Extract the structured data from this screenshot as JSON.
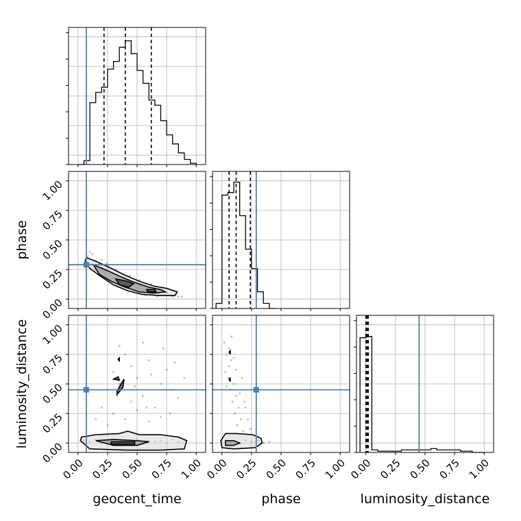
{
  "chart_data": {
    "type": "corner",
    "parameters": [
      "geocent_time",
      "phase",
      "luminosity_distance"
    ],
    "tick_values": [
      0.0,
      0.25,
      0.5,
      0.75,
      1.0
    ],
    "tick_labels": [
      "0.00",
      "0.25",
      "0.50",
      "0.75",
      "1.00"
    ],
    "axis_range": [
      -0.08,
      1.08
    ],
    "grid": true,
    "truths": {
      "geocent_time": 0.07,
      "phase": 0.29,
      "luminosity_distance": 0.45
    },
    "colors": {
      "truth": "#4682b4",
      "hist": "#000000",
      "grid": "#b0b0b0",
      "points": "#000000"
    },
    "marginals": [
      {
        "parameter": "geocent_time",
        "quantiles": [
          0.22,
          0.4,
          0.62
        ],
        "bin_edges": [
          0.0,
          0.05,
          0.1,
          0.15,
          0.2,
          0.25,
          0.3,
          0.35,
          0.4,
          0.45,
          0.5,
          0.55,
          0.6,
          0.65,
          0.7,
          0.75,
          0.8,
          0.85,
          0.9,
          0.95,
          1.0
        ],
        "counts": [
          0.0,
          0.03,
          0.48,
          0.56,
          0.6,
          0.74,
          0.8,
          0.91,
          0.96,
          0.86,
          0.73,
          0.63,
          0.5,
          0.46,
          0.34,
          0.23,
          0.16,
          0.09,
          0.04,
          0.01
        ]
      },
      {
        "parameter": "phase",
        "quantiles": [
          0.06,
          0.12,
          0.24
        ],
        "bin_edges": [
          -0.05,
          0.0,
          0.05,
          0.1,
          0.15,
          0.2,
          0.25,
          0.3,
          0.35,
          0.4,
          0.45
        ],
        "counts": [
          0.04,
          0.88,
          0.9,
          0.98,
          0.72,
          0.46,
          0.31,
          0.13,
          0.04,
          0.0
        ]
      },
      {
        "parameter": "luminosity_distance",
        "quantiles": [
          0.0,
          0.01,
          0.02
        ],
        "bin_edges": [
          -0.05,
          0.0,
          0.05,
          0.1,
          0.15,
          0.2,
          0.25,
          0.3,
          0.35,
          0.4,
          0.45,
          0.5,
          0.55,
          0.6,
          0.65,
          0.7,
          0.75,
          0.8,
          0.85,
          0.9,
          0.95,
          1.0
        ],
        "counts": [
          0.89,
          0.9,
          0.02,
          0.01,
          0.01,
          0.01,
          0.01,
          0.02,
          0.02,
          0.02,
          0.02,
          0.02,
          0.03,
          0.02,
          0.02,
          0.02,
          0.02,
          0.01,
          0.01,
          0.0,
          0.0
        ]
      }
    ],
    "scatter_samples": [
      {
        "x": "geocent_time",
        "y": "phase",
        "points": [
          [
            0.06,
            0.34
          ],
          [
            0.08,
            0.36
          ],
          [
            0.1,
            0.3
          ],
          [
            0.12,
            0.38
          ],
          [
            0.15,
            0.32
          ],
          [
            0.18,
            0.3
          ],
          [
            0.2,
            0.27
          ],
          [
            0.22,
            0.24
          ],
          [
            0.25,
            0.26
          ],
          [
            0.28,
            0.22
          ],
          [
            0.3,
            0.18
          ],
          [
            0.33,
            0.2
          ],
          [
            0.35,
            0.16
          ],
          [
            0.38,
            0.18
          ],
          [
            0.4,
            0.14
          ],
          [
            0.42,
            0.12
          ],
          [
            0.45,
            0.15
          ],
          [
            0.48,
            0.11
          ],
          [
            0.5,
            0.09
          ],
          [
            0.53,
            0.12
          ],
          [
            0.55,
            0.08
          ],
          [
            0.58,
            0.07
          ],
          [
            0.6,
            0.09
          ],
          [
            0.63,
            0.05
          ],
          [
            0.65,
            0.06
          ],
          [
            0.68,
            0.04
          ],
          [
            0.7,
            0.07
          ],
          [
            0.73,
            0.03
          ],
          [
            0.75,
            0.05
          ],
          [
            0.78,
            0.03
          ],
          [
            0.8,
            0.02
          ],
          [
            0.83,
            0.04
          ],
          [
            0.85,
            0.02
          ],
          [
            0.88,
            0.02
          ],
          [
            0.1,
            0.4
          ],
          [
            0.14,
            0.25
          ],
          [
            0.24,
            0.3
          ],
          [
            0.32,
            0.25
          ],
          [
            0.44,
            0.2
          ],
          [
            0.52,
            0.16
          ],
          [
            0.62,
            0.13
          ],
          [
            0.72,
            0.1
          ],
          [
            0.2,
            0.33
          ],
          [
            0.27,
            0.15
          ],
          [
            0.36,
            0.1
          ],
          [
            0.47,
            0.06
          ],
          [
            0.57,
            0.03
          ],
          [
            0.67,
            0.02
          ]
        ]
      },
      {
        "x": "geocent_time",
        "y": "luminosity_distance",
        "points": [
          [
            0.05,
            0.02
          ],
          [
            0.1,
            0.01
          ],
          [
            0.15,
            0.03
          ],
          [
            0.2,
            0.0
          ],
          [
            0.25,
            0.02
          ],
          [
            0.3,
            0.01
          ],
          [
            0.35,
            0.0
          ],
          [
            0.4,
            0.02
          ],
          [
            0.45,
            0.01
          ],
          [
            0.5,
            0.03
          ],
          [
            0.55,
            0.0
          ],
          [
            0.6,
            0.02
          ],
          [
            0.65,
            0.01
          ],
          [
            0.7,
            0.02
          ],
          [
            0.75,
            0.0
          ],
          [
            0.8,
            0.03
          ],
          [
            0.85,
            0.01
          ],
          [
            0.9,
            0.02
          ],
          [
            0.2,
            0.3
          ],
          [
            0.25,
            0.45
          ],
          [
            0.3,
            0.6
          ],
          [
            0.35,
            0.5
          ],
          [
            0.4,
            0.75
          ],
          [
            0.45,
            0.35
          ],
          [
            0.5,
            0.55
          ],
          [
            0.55,
            0.4
          ],
          [
            0.6,
            0.7
          ],
          [
            0.65,
            0.3
          ],
          [
            0.7,
            0.5
          ],
          [
            0.75,
            0.62
          ],
          [
            0.8,
            0.45
          ],
          [
            0.85,
            0.38
          ],
          [
            0.3,
            0.25
          ],
          [
            0.35,
            0.82
          ],
          [
            0.45,
            0.65
          ],
          [
            0.55,
            0.85
          ],
          [
            0.62,
            0.58
          ],
          [
            0.72,
            0.8
          ],
          [
            0.82,
            0.68
          ],
          [
            0.9,
            0.55
          ],
          [
            0.25,
            0.15
          ],
          [
            0.4,
            0.2
          ],
          [
            0.5,
            0.28
          ],
          [
            0.6,
            0.18
          ],
          [
            0.7,
            0.22
          ],
          [
            0.15,
            0.2
          ],
          [
            0.33,
            0.4
          ],
          [
            0.48,
            0.48
          ],
          [
            0.58,
            0.3
          ],
          [
            0.78,
            0.25
          ]
        ]
      },
      {
        "x": "phase",
        "y": "luminosity_distance",
        "points": [
          [
            0.0,
            0.02
          ],
          [
            0.05,
            0.01
          ],
          [
            0.1,
            0.02
          ],
          [
            0.15,
            0.0
          ],
          [
            0.2,
            0.02
          ],
          [
            0.25,
            0.01
          ],
          [
            0.3,
            0.02
          ],
          [
            0.35,
            0.0
          ],
          [
            0.4,
            0.01
          ],
          [
            0.02,
            0.85
          ],
          [
            0.04,
            0.75
          ],
          [
            0.06,
            0.65
          ],
          [
            0.08,
            0.7
          ],
          [
            0.05,
            0.55
          ],
          [
            0.1,
            0.5
          ],
          [
            0.07,
            0.45
          ],
          [
            0.12,
            0.4
          ],
          [
            0.09,
            0.35
          ],
          [
            0.14,
            0.3
          ],
          [
            0.11,
            0.25
          ],
          [
            0.16,
            0.2
          ],
          [
            0.13,
            0.15
          ],
          [
            0.18,
            0.1
          ],
          [
            0.03,
            0.6
          ],
          [
            0.06,
            0.8
          ],
          [
            0.15,
            0.42
          ],
          [
            0.2,
            0.3
          ],
          [
            0.17,
            0.55
          ],
          [
            0.22,
            0.2
          ],
          [
            0.19,
            0.35
          ],
          [
            0.08,
            0.9
          ],
          [
            0.12,
            0.62
          ],
          [
            0.04,
            0.48
          ],
          [
            0.1,
            0.72
          ],
          [
            0.24,
            0.12
          ]
        ]
      }
    ],
    "contours": [
      {
        "x": "geocent_time",
        "y": "phase",
        "levels": [
          [
            [
              0.07,
              0.35
            ],
            [
              0.15,
              0.32
            ],
            [
              0.26,
              0.27
            ],
            [
              0.38,
              0.21
            ],
            [
              0.52,
              0.15
            ],
            [
              0.64,
              0.11
            ],
            [
              0.75,
              0.09
            ],
            [
              0.84,
              0.06
            ],
            [
              0.82,
              0.03
            ],
            [
              0.68,
              0.03
            ],
            [
              0.54,
              0.04
            ],
            [
              0.42,
              0.07
            ],
            [
              0.3,
              0.12
            ],
            [
              0.18,
              0.2
            ],
            [
              0.1,
              0.26
            ],
            [
              0.06,
              0.31
            ],
            [
              0.07,
              0.35
            ]
          ],
          [
            [
              0.13,
              0.29
            ],
            [
              0.25,
              0.24
            ],
            [
              0.36,
              0.19
            ],
            [
              0.48,
              0.14
            ],
            [
              0.6,
              0.1
            ],
            [
              0.7,
              0.08
            ],
            [
              0.74,
              0.06
            ],
            [
              0.64,
              0.05
            ],
            [
              0.52,
              0.06
            ],
            [
              0.4,
              0.1
            ],
            [
              0.28,
              0.15
            ],
            [
              0.18,
              0.21
            ],
            [
              0.13,
              0.29
            ]
          ],
          [
            [
              0.32,
              0.17
            ],
            [
              0.42,
              0.15
            ],
            [
              0.47,
              0.13
            ],
            [
              0.43,
              0.1
            ],
            [
              0.35,
              0.12
            ],
            [
              0.32,
              0.17
            ]
          ],
          [
            [
              0.58,
              0.08
            ],
            [
              0.65,
              0.08
            ],
            [
              0.66,
              0.06
            ],
            [
              0.59,
              0.06
            ],
            [
              0.58,
              0.08
            ]
          ]
        ]
      },
      {
        "x": "geocent_time",
        "y": "luminosity_distance",
        "levels": [
          [
            [
              0.02,
              0.02
            ],
            [
              0.03,
              0.05
            ],
            [
              0.15,
              0.07
            ],
            [
              0.35,
              0.08
            ],
            [
              0.42,
              0.1
            ],
            [
              0.52,
              0.07
            ],
            [
              0.7,
              0.07
            ],
            [
              0.85,
              0.05
            ],
            [
              0.92,
              0.02
            ],
            [
              0.9,
              -0.05
            ],
            [
              0.7,
              -0.06
            ],
            [
              0.4,
              -0.06
            ],
            [
              0.1,
              -0.05
            ],
            [
              0.02,
              0.02
            ]
          ],
          [
            [
              0.15,
              0.02
            ],
            [
              0.3,
              0.03
            ],
            [
              0.5,
              0.02
            ],
            [
              0.6,
              0.01
            ],
            [
              0.5,
              -0.02
            ],
            [
              0.3,
              -0.02
            ],
            [
              0.15,
              0.02
            ]
          ],
          [
            [
              0.28,
              0.01
            ],
            [
              0.48,
              0.01
            ],
            [
              0.48,
              -0.01
            ],
            [
              0.28,
              -0.01
            ],
            [
              0.28,
              0.01
            ]
          ],
          [
            [
              0.3,
              0.54
            ],
            [
              0.34,
              0.56
            ],
            [
              0.35,
              0.53
            ],
            [
              0.3,
              0.54
            ]
          ],
          [
            [
              0.33,
              0.44
            ],
            [
              0.37,
              0.51
            ],
            [
              0.39,
              0.54
            ],
            [
              0.38,
              0.47
            ],
            [
              0.33,
              0.41
            ],
            [
              0.33,
              0.44
            ]
          ],
          [
            [
              0.34,
              0.71
            ],
            [
              0.35,
              0.72
            ],
            [
              0.35,
              0.69
            ],
            [
              0.34,
              0.71
            ]
          ]
        ]
      },
      {
        "x": "phase",
        "y": "luminosity_distance",
        "levels": [
          [
            [
              -0.01,
              0.02
            ],
            [
              0.03,
              0.08
            ],
            [
              0.12,
              0.08
            ],
            [
              0.26,
              0.07
            ],
            [
              0.33,
              0.04
            ],
            [
              0.34,
              0.0
            ],
            [
              0.28,
              -0.04
            ],
            [
              0.1,
              -0.05
            ],
            [
              0.0,
              -0.04
            ],
            [
              -0.01,
              0.02
            ]
          ],
          [
            [
              0.03,
              0.02
            ],
            [
              0.1,
              0.02
            ],
            [
              0.15,
              0.0
            ],
            [
              0.1,
              -0.02
            ],
            [
              0.03,
              -0.02
            ],
            [
              0.03,
              0.02
            ]
          ],
          [
            [
              0.06,
              0.54
            ],
            [
              0.07,
              0.55
            ],
            [
              0.07,
              0.52
            ],
            [
              0.06,
              0.54
            ]
          ],
          [
            [
              0.06,
              0.77
            ],
            [
              0.07,
              0.78
            ],
            [
              0.07,
              0.75
            ],
            [
              0.06,
              0.77
            ]
          ]
        ]
      }
    ]
  }
}
